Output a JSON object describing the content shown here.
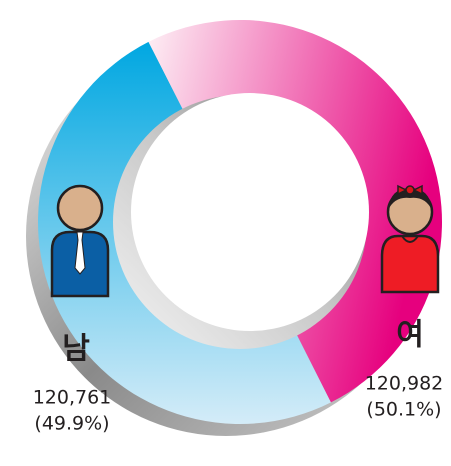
{
  "chart_data": {
    "type": "donut",
    "categories": [
      "남",
      "여"
    ],
    "values": [
      120761,
      120982
    ],
    "value_labels": [
      "120,761",
      "120,982"
    ],
    "percentages": [
      49.9,
      50.1
    ],
    "percentage_labels": [
      "(49.9%)",
      "(50.1%)"
    ],
    "colors": [
      "#00a7e1",
      "#e6007e"
    ]
  }
}
